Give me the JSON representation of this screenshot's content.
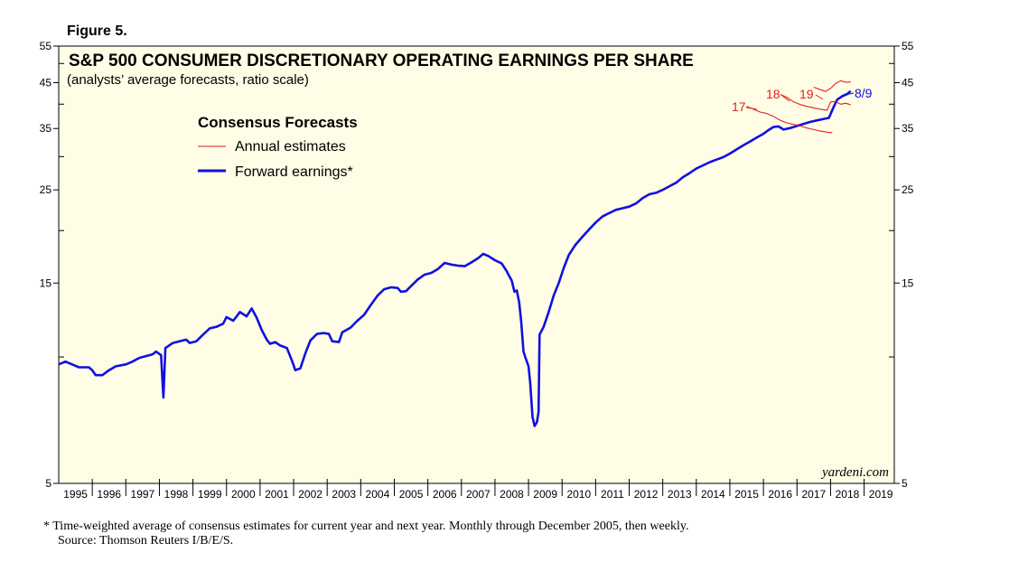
{
  "figure_label": "Figure 5.",
  "footnote_line1": "*  Time-weighted average of consensus estimates for current year and next year. Monthly through December 2005, then weekly.",
  "footnote_line2": "Source: Thomson Reuters I/B/E/S.",
  "chart_data": {
    "type": "line",
    "title": "S&P 500 CONSUMER DISCRETIONARY OPERATING EARNINGS PER SHARE",
    "subtitle": "(analysts’ average forecasts, ratio scale)",
    "y_scale": "log",
    "ylim": [
      5,
      55
    ],
    "y_ticks": [
      5,
      15,
      25,
      35,
      45,
      55
    ],
    "xlim": [
      1995,
      2019.9
    ],
    "x_labels": [
      "1995",
      "1996",
      "1997",
      "1998",
      "1999",
      "2000",
      "2001",
      "2002",
      "2003",
      "2004",
      "2005",
      "2006",
      "2007",
      "2008",
      "2009",
      "2010",
      "2011",
      "2012",
      "2013",
      "2014",
      "2015",
      "2016",
      "2017",
      "2018",
      "2019"
    ],
    "legend": {
      "title": "Consensus Forecasts",
      "placement": "top-left",
      "entries": [
        {
          "label": "Annual estimates",
          "color": "#e0201f"
        },
        {
          "label": "Forward earnings*",
          "color": "#1010e0"
        }
      ]
    },
    "annotations": [
      {
        "text": "17",
        "color": "#e0201f"
      },
      {
        "text": "18",
        "color": "#e0201f"
      },
      {
        "text": "19",
        "color": "#e0201f"
      },
      {
        "text": "8/9",
        "color": "#1010e0"
      }
    ],
    "watermark": "yardeni.com",
    "background_color": "#fffde6",
    "series": [
      {
        "name": "Forward earnings*",
        "color": "#1010e0",
        "points": [
          [
            1995.0,
            9.6
          ],
          [
            1995.2,
            9.75
          ],
          [
            1995.4,
            9.6
          ],
          [
            1995.6,
            9.45
          ],
          [
            1995.9,
            9.45
          ],
          [
            1996.0,
            9.3
          ],
          [
            1996.1,
            9.05
          ],
          [
            1996.3,
            9.05
          ],
          [
            1996.5,
            9.3
          ],
          [
            1996.7,
            9.5
          ],
          [
            1997.0,
            9.6
          ],
          [
            1997.2,
            9.75
          ],
          [
            1997.4,
            9.95
          ],
          [
            1997.6,
            10.05
          ],
          [
            1997.8,
            10.15
          ],
          [
            1997.9,
            10.3
          ],
          [
            1998.05,
            10.1
          ],
          [
            1998.12,
            8.0
          ],
          [
            1998.18,
            10.5
          ],
          [
            1998.4,
            10.8
          ],
          [
            1998.6,
            10.9
          ],
          [
            1998.8,
            11.0
          ],
          [
            1998.9,
            10.8
          ],
          [
            1999.1,
            10.9
          ],
          [
            1999.3,
            11.3
          ],
          [
            1999.5,
            11.7
          ],
          [
            1999.7,
            11.8
          ],
          [
            1999.9,
            12.0
          ],
          [
            2000.0,
            12.45
          ],
          [
            2000.2,
            12.2
          ],
          [
            2000.4,
            12.8
          ],
          [
            2000.6,
            12.5
          ],
          [
            2000.75,
            13.05
          ],
          [
            2000.9,
            12.4
          ],
          [
            2001.05,
            11.6
          ],
          [
            2001.2,
            11.0
          ],
          [
            2001.3,
            10.75
          ],
          [
            2001.45,
            10.85
          ],
          [
            2001.6,
            10.65
          ],
          [
            2001.8,
            10.5
          ],
          [
            2001.95,
            9.8
          ],
          [
            2002.05,
            9.3
          ],
          [
            2002.2,
            9.4
          ],
          [
            2002.35,
            10.2
          ],
          [
            2002.5,
            10.95
          ],
          [
            2002.7,
            11.35
          ],
          [
            2002.9,
            11.4
          ],
          [
            2003.05,
            11.35
          ],
          [
            2003.15,
            10.9
          ],
          [
            2003.35,
            10.85
          ],
          [
            2003.45,
            11.45
          ],
          [
            2003.7,
            11.75
          ],
          [
            2003.9,
            12.2
          ],
          [
            2004.1,
            12.6
          ],
          [
            2004.3,
            13.3
          ],
          [
            2004.5,
            14.0
          ],
          [
            2004.7,
            14.5
          ],
          [
            2004.9,
            14.65
          ],
          [
            2005.1,
            14.6
          ],
          [
            2005.2,
            14.3
          ],
          [
            2005.35,
            14.35
          ],
          [
            2005.5,
            14.75
          ],
          [
            2005.7,
            15.3
          ],
          [
            2005.9,
            15.7
          ],
          [
            2006.1,
            15.85
          ],
          [
            2006.3,
            16.2
          ],
          [
            2006.5,
            16.75
          ],
          [
            2006.7,
            16.6
          ],
          [
            2006.9,
            16.5
          ],
          [
            2007.1,
            16.45
          ],
          [
            2007.3,
            16.8
          ],
          [
            2007.5,
            17.2
          ],
          [
            2007.65,
            17.6
          ],
          [
            2007.8,
            17.4
          ],
          [
            2008.0,
            17.0
          ],
          [
            2008.2,
            16.7
          ],
          [
            2008.35,
            16.0
          ],
          [
            2008.5,
            15.2
          ],
          [
            2008.58,
            14.3
          ],
          [
            2008.65,
            14.4
          ],
          [
            2008.72,
            13.5
          ],
          [
            2008.78,
            12.2
          ],
          [
            2008.85,
            10.3
          ],
          [
            2008.92,
            9.9
          ],
          [
            2009.0,
            9.5
          ],
          [
            2009.05,
            8.7
          ],
          [
            2009.12,
            7.2
          ],
          [
            2009.18,
            6.85
          ],
          [
            2009.25,
            7.0
          ],
          [
            2009.3,
            7.4
          ],
          [
            2009.33,
            11.3
          ],
          [
            2009.45,
            11.8
          ],
          [
            2009.6,
            12.8
          ],
          [
            2009.75,
            14.0
          ],
          [
            2009.9,
            15.0
          ],
          [
            2010.05,
            16.3
          ],
          [
            2010.2,
            17.5
          ],
          [
            2010.4,
            18.5
          ],
          [
            2010.6,
            19.3
          ],
          [
            2010.8,
            20.1
          ],
          [
            2011.0,
            20.9
          ],
          [
            2011.2,
            21.6
          ],
          [
            2011.4,
            22.0
          ],
          [
            2011.6,
            22.4
          ],
          [
            2011.8,
            22.6
          ],
          [
            2012.0,
            22.8
          ],
          [
            2012.2,
            23.2
          ],
          [
            2012.4,
            23.9
          ],
          [
            2012.6,
            24.4
          ],
          [
            2012.8,
            24.6
          ],
          [
            2013.0,
            25.0
          ],
          [
            2013.2,
            25.5
          ],
          [
            2013.4,
            26.0
          ],
          [
            2013.6,
            26.8
          ],
          [
            2013.8,
            27.4
          ],
          [
            2014.0,
            28.1
          ],
          [
            2014.2,
            28.6
          ],
          [
            2014.4,
            29.1
          ],
          [
            2014.6,
            29.5
          ],
          [
            2014.8,
            29.9
          ],
          [
            2015.0,
            30.5
          ],
          [
            2015.2,
            31.2
          ],
          [
            2015.4,
            31.9
          ],
          [
            2015.6,
            32.6
          ],
          [
            2015.8,
            33.3
          ],
          [
            2016.0,
            34.0
          ],
          [
            2016.15,
            34.7
          ],
          [
            2016.3,
            35.3
          ],
          [
            2016.45,
            35.4
          ],
          [
            2016.6,
            34.8
          ],
          [
            2016.8,
            35.1
          ],
          [
            2017.0,
            35.5
          ],
          [
            2017.2,
            35.9
          ],
          [
            2017.4,
            36.3
          ],
          [
            2017.6,
            36.6
          ],
          [
            2017.8,
            36.9
          ],
          [
            2017.95,
            37.1
          ],
          [
            2018.1,
            39.5
          ],
          [
            2018.2,
            41.0
          ],
          [
            2018.35,
            41.8
          ],
          [
            2018.5,
            42.3
          ],
          [
            2018.6,
            43.0
          ]
        ]
      },
      {
        "name": "17",
        "color": "#e0201f",
        "points": [
          [
            2015.5,
            39.5
          ],
          [
            2015.7,
            38.9
          ],
          [
            2015.9,
            38.3
          ],
          [
            2016.1,
            38.0
          ],
          [
            2016.3,
            37.4
          ],
          [
            2016.5,
            36.6
          ],
          [
            2016.7,
            36.1
          ],
          [
            2016.9,
            35.8
          ],
          [
            2017.1,
            35.5
          ],
          [
            2017.3,
            35.1
          ],
          [
            2017.5,
            34.8
          ],
          [
            2017.7,
            34.5
          ],
          [
            2017.9,
            34.3
          ],
          [
            2018.05,
            34.2
          ]
        ]
      },
      {
        "name": "18",
        "color": "#e0201f",
        "points": [
          [
            2016.5,
            42.2
          ],
          [
            2016.7,
            41.5
          ],
          [
            2016.9,
            40.5
          ],
          [
            2017.1,
            39.9
          ],
          [
            2017.3,
            39.5
          ],
          [
            2017.5,
            39.2
          ],
          [
            2017.7,
            38.9
          ],
          [
            2017.9,
            38.7
          ],
          [
            2018.0,
            40.5
          ],
          [
            2018.15,
            40.6
          ],
          [
            2018.3,
            40.0
          ],
          [
            2018.45,
            40.2
          ],
          [
            2018.6,
            39.9
          ]
        ]
      },
      {
        "name": "19",
        "color": "#e0201f",
        "points": [
          [
            2017.5,
            43.9
          ],
          [
            2017.7,
            43.3
          ],
          [
            2017.85,
            42.9
          ],
          [
            2018.0,
            43.6
          ],
          [
            2018.15,
            44.8
          ],
          [
            2018.3,
            45.5
          ],
          [
            2018.45,
            45.1
          ],
          [
            2018.6,
            45.2
          ]
        ]
      }
    ]
  }
}
